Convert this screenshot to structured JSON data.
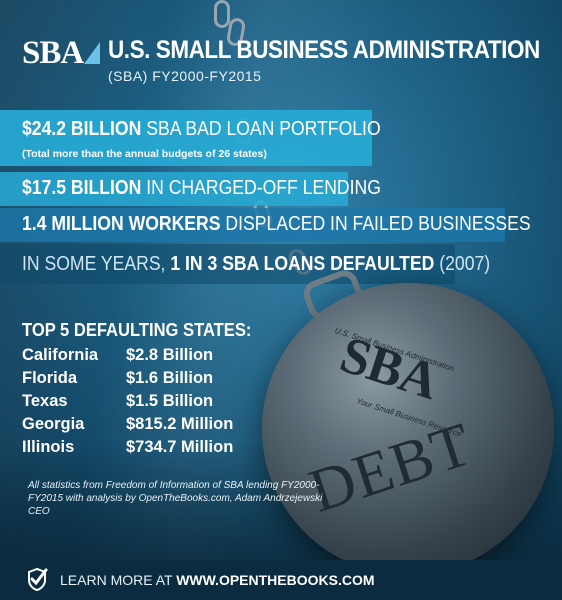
{
  "header": {
    "logo_text": "SBA",
    "title": "U.S. SMALL BUSINESS ADMINISTRATION",
    "subtitle": "(SBA) FY2000-FY2015"
  },
  "bands": [
    {
      "bold": "$24.2 BILLION",
      "rest": " SBA BAD LOAN PORTFOLIO",
      "note": "(Total more than the annual budgets of 26 states)"
    },
    {
      "bold": "$17.5 BILLION",
      "rest": " IN CHARGED-OFF LENDING"
    },
    {
      "bold": "1.4 MILLION WORKERS",
      "rest": " DISPLACED IN FAILED BUSINESSES"
    },
    {
      "lead": "IN SOME YEARS, ",
      "bold": "1 IN 3 SBA LOANS DEFAULTED",
      "rest": " (2007)"
    }
  ],
  "ball": {
    "small_text": "U.S. Small Business Administration",
    "sba": "SBA",
    "tagline": "Your Small Business Resource",
    "debt": "DEBT"
  },
  "states": {
    "heading": "TOP 5 DEFAULTING STATES:",
    "rows": [
      {
        "name": "California",
        "amount": "$2.8 Billion"
      },
      {
        "name": "Florida",
        "amount": "$1.6 Billion"
      },
      {
        "name": "Texas",
        "amount": "$1.5 Billion"
      },
      {
        "name": "Georgia",
        "amount": "$815.2 Million"
      },
      {
        "name": "Illinois",
        "amount": "$734.7 Million"
      }
    ]
  },
  "footnote": "All statistics from Freedom of Information of SBA lending FY2000-FY2015 with analysis by OpenTheBooks.com, Adam Andrzejewski CEO",
  "footer": {
    "label": "LEARN MORE AT ",
    "link": "WWW.OPENTHEBOOKS.COM",
    "icon": "checkmark-shield-icon"
  },
  "colors": {
    "background": "#1f6387",
    "band_accent": "#27aad5",
    "footer_bg": "#0a2b40"
  }
}
